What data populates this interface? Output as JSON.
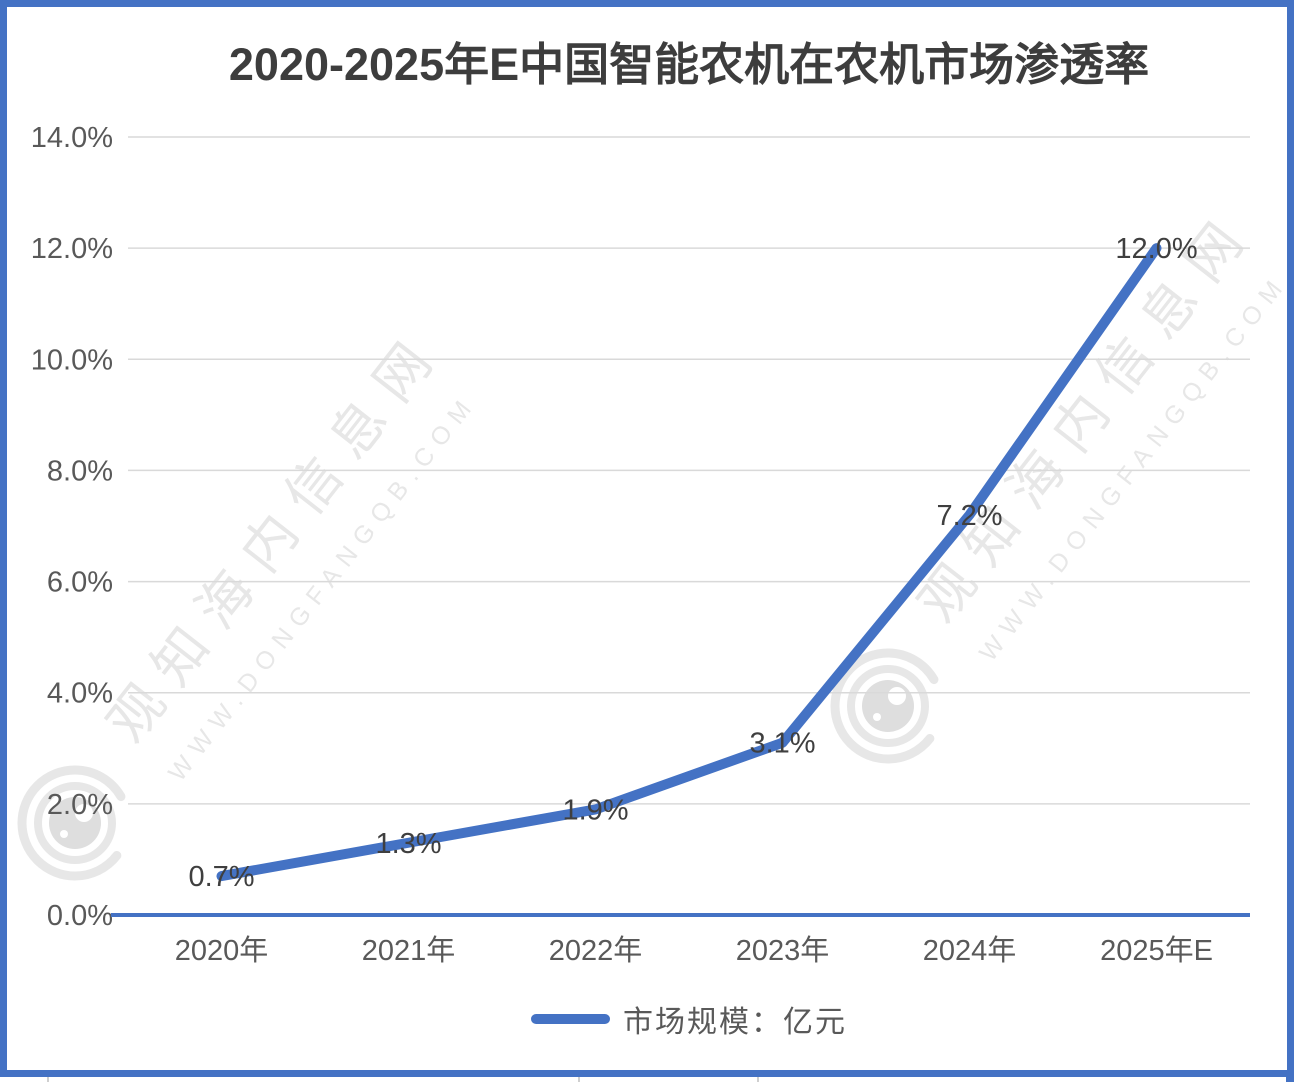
{
  "chart_data": {
    "type": "line",
    "title": "2020-2025年E中国智能农机在农机市场渗透率",
    "categories": [
      "2020年",
      "2021年",
      "2022年",
      "2023年",
      "2024年",
      "2025年E"
    ],
    "series": [
      {
        "name": "市场规模：亿元",
        "color": "#4472C4",
        "values": [
          0.7,
          1.3,
          1.9,
          3.1,
          7.2,
          12.0
        ]
      }
    ],
    "data_labels": [
      "0.7%",
      "1.3%",
      "1.9%",
      "3.1%",
      "7.2%",
      "12.0%"
    ],
    "unit": "percent",
    "y_tick_labels": [
      "0.0%",
      "2.0%",
      "4.0%",
      "6.0%",
      "8.0%",
      "10.0%",
      "12.0%",
      "14.0%"
    ],
    "ylim": [
      0,
      14
    ],
    "y_tick_step": 2,
    "xlabel": "",
    "ylabel": "",
    "grid": true,
    "legend_position": "bottom"
  },
  "watermark": {
    "text_cn": "观知海内信息网",
    "text_url": "WWW.DONGFANGQB.COM",
    "logo": "eye-camera-logo"
  },
  "colors": {
    "accent": "#4472C4",
    "frame": "#4472C4",
    "grid": "#d9d9d9",
    "tick": "#595959",
    "dlabel": "#3f3f3f",
    "title": "#3d3d3d",
    "wm": "#e7e7e7"
  }
}
